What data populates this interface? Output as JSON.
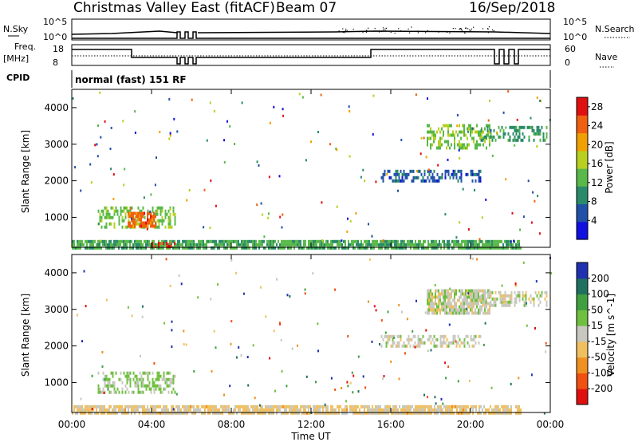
{
  "header": {
    "title": "Christmas Valley East (fitACF)",
    "beam": "Beam 07",
    "date": "16/Sep/2018"
  },
  "top_panels": {
    "nsky_label": "N.Sky",
    "nsearch_label": "N.Search",
    "nsky_ticks": [
      "10^5",
      "10^0"
    ],
    "nsky_right_ticks": [
      "10^5",
      "10^0"
    ],
    "freq_label": "Freq.",
    "freq_unit": "[MHz]",
    "freq_ticks": [
      "18",
      "8"
    ],
    "nave_label": "Nave",
    "nave_ticks": [
      "60",
      "0"
    ],
    "cpid_label": "CPID",
    "cpid_text": "normal (fast) 151 RF"
  },
  "chart_data": [
    {
      "type": "heatmap",
      "name": "power",
      "ylabel": "Slant Range [km]",
      "xlim": [
        0,
        24
      ],
      "ylim": [
        180,
        4500
      ],
      "yticks": [
        "1000",
        "2000",
        "3000",
        "4000"
      ],
      "colorbar": {
        "label": "Power [dB]",
        "ticks": [
          "4",
          "8",
          "12",
          "16",
          "20",
          "24",
          "28"
        ],
        "range": [
          0,
          30
        ],
        "colors": [
          "#1010e0",
          "#2050a8",
          "#2a8a6a",
          "#58b848",
          "#b8d020",
          "#f0a000",
          "#f06010",
          "#e01010"
        ]
      },
      "regions": [
        {
          "x": [
            1.3,
            5.2
          ],
          "y": [
            700,
            1300
          ],
          "value": 14
        },
        {
          "x": [
            2.8,
            4.2
          ],
          "y": [
            800,
            1150
          ],
          "value": 24
        },
        {
          "x": [
            0.0,
            22.5
          ],
          "y": [
            200,
            380
          ],
          "value": 12
        },
        {
          "x": [
            4.0,
            5.2
          ],
          "y": [
            230,
            330
          ],
          "value": 26
        },
        {
          "x": [
            17.8,
            21.0
          ],
          "y": [
            2900,
            3550
          ],
          "value": 14
        },
        {
          "x": [
            20.5,
            23.8
          ],
          "y": [
            3100,
            3500
          ],
          "value": 10
        },
        {
          "x": [
            15.5,
            20.5
          ],
          "y": [
            2000,
            2300
          ],
          "value": 6
        }
      ]
    },
    {
      "type": "heatmap",
      "name": "velocity",
      "ylabel": "Slant Range [km]",
      "xlim": [
        0,
        24
      ],
      "ylim": [
        180,
        4500
      ],
      "yticks": [
        "1000",
        "2000",
        "3000",
        "4000"
      ],
      "colorbar": {
        "label": "Velocity [m s^-1]",
        "ticks": [
          "200",
          "100",
          "50",
          "15",
          "-15",
          "-50",
          "-100",
          "-200"
        ],
        "range": [
          -250,
          250
        ],
        "colors": [
          "#e01010",
          "#f05010",
          "#f09020",
          "#f0c060",
          "#c8c8c0",
          "#70c040",
          "#40a040",
          "#207060",
          "#2030b0"
        ]
      },
      "regions": [
        {
          "x": [
            1.3,
            5.2
          ],
          "y": [
            700,
            1300
          ],
          "value": 40
        },
        {
          "x": [
            0.0,
            22.5
          ],
          "y": [
            200,
            380
          ],
          "value": -40
        },
        {
          "x": [
            17.8,
            21.0
          ],
          "y": [
            2900,
            3550
          ],
          "value": 0
        },
        {
          "x": [
            20.5,
            23.8
          ],
          "y": [
            3100,
            3500
          ],
          "value": 0
        },
        {
          "x": [
            15.5,
            20.5
          ],
          "y": [
            2000,
            2300
          ],
          "value": 0
        }
      ],
      "xticks": [
        "00:00",
        "04:00",
        "08:00",
        "12:00",
        "16:00",
        "20:00",
        "00:00"
      ],
      "xlabel": "Time UT"
    }
  ]
}
